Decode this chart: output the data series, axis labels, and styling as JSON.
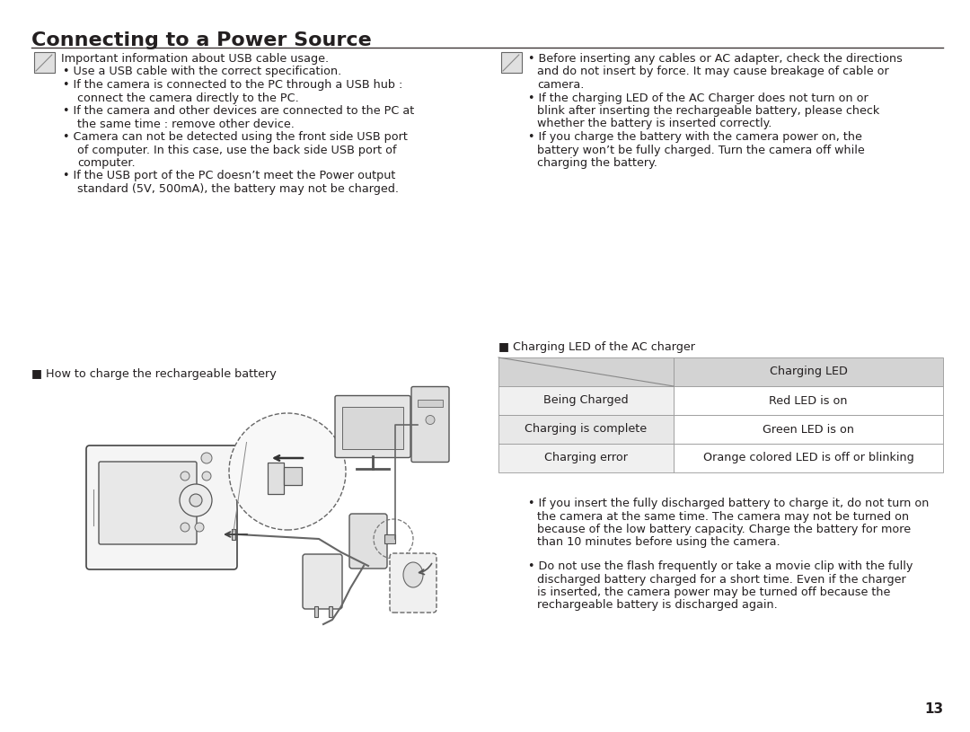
{
  "title": "Connecting to a Power Source",
  "bg_color": "#ffffff",
  "text_color": "#231f20",
  "line_color": "#3d3535",
  "title_fontsize": 16,
  "body_fontsize": 9.2,
  "table_title": "■ Charging LED of the AC charger",
  "table_header_col2": "Charging LED",
  "table_rows": [
    [
      "Being Charged",
      "Red LED is on"
    ],
    [
      "Charging is complete",
      "Green LED is on"
    ],
    [
      "Charging error",
      "Orange colored LED is off or blinking"
    ]
  ],
  "table_header_bg": "#d3d3d3",
  "table_row1_bg": "#f0f0f0",
  "table_row2_bg": "#e8e8e8",
  "battery_label": "■ How to charge the rechargeable battery",
  "page_number": "13",
  "left_header": "Important information about USB cable usage.",
  "left_lines": [
    [
      true,
      "Use a USB cable with the correct specification."
    ],
    [
      true,
      "If the camera is connected to the PC through a USB hub :"
    ],
    [
      false,
      "connect the camera directly to the PC."
    ],
    [
      true,
      "If the camera and other devices are connected to the PC at"
    ],
    [
      false,
      "the same time : remove other device."
    ],
    [
      true,
      "Camera can not be detected using the front side USB port"
    ],
    [
      false,
      "of computer. In this case, use the back side USB port of"
    ],
    [
      false,
      "computer."
    ],
    [
      true,
      "If the USB port of the PC doesn’t meet the Power output"
    ],
    [
      false,
      "standard (5V, 500mA), the battery may not be charged."
    ]
  ],
  "right_lines_top": [
    [
      true,
      "Before inserting any cables or AC adapter, check the directions"
    ],
    [
      false,
      "and do not insert by force. It may cause breakage of cable or"
    ],
    [
      false,
      "camera."
    ],
    [
      true,
      "If the charging LED of the AC Charger does not turn on or"
    ],
    [
      false,
      "blink after inserting the rechargeable battery, please check"
    ],
    [
      false,
      "whether the battery is inserted correctly."
    ],
    [
      true,
      "If you charge the battery with the camera power on, the"
    ],
    [
      false,
      "battery won’t be fully charged. Turn the camera off while"
    ],
    [
      false,
      "charging the battery."
    ]
  ],
  "bottom_right_para1": [
    [
      true,
      "If you insert the fully discharged battery to charge it, do not turn on"
    ],
    [
      false,
      "the camera at the same time. The camera may not be turned on"
    ],
    [
      false,
      "because of the low battery capacity. Charge the battery for more"
    ],
    [
      false,
      "than 10 minutes before using the camera."
    ]
  ],
  "bottom_right_para2": [
    [
      true,
      "Do not use the flash frequently or take a movie clip with the fully"
    ],
    [
      false,
      "discharged battery charged for a short time. Even if the charger"
    ],
    [
      false,
      "is inserted, the camera power may be turned off because the"
    ],
    [
      false,
      "rechargeable battery is discharged again."
    ]
  ]
}
